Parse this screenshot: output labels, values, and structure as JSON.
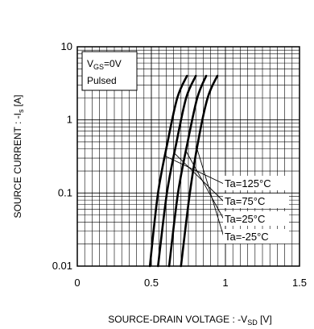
{
  "chart_data": {
    "type": "line",
    "title": "",
    "xlabel": {
      "prefix": "SOURCE-DRAIN VOLTAGE : -V",
      "sub": "SD",
      "suffix": " [V]"
    },
    "ylabel": {
      "prefix": "SOURCE CURRENT : -I",
      "sub": "s",
      "suffix": " [A]"
    },
    "xlim": [
      0,
      1.5
    ],
    "ylim": [
      0.01,
      10
    ],
    "yscale": "log",
    "grid": true,
    "x_ticks": [
      0,
      0.5,
      1,
      1.5
    ],
    "x_tick_labels": [
      "0",
      "0.5",
      "1",
      "1.5"
    ],
    "y_ticks": [
      0.01,
      0.1,
      1,
      10
    ],
    "y_tick_labels": [
      "0.01",
      "0.1",
      "1",
      "10"
    ],
    "condition_box": {
      "line1": {
        "prefix": "V",
        "sub": "GS",
        "suffix": "=0V"
      },
      "line2": "Pulsed"
    },
    "series": [
      {
        "name": "Ta=125°C",
        "x": [
          0.49,
          0.545,
          0.61,
          0.675,
          0.74
        ],
        "y": [
          0.01,
          0.1,
          0.5,
          2,
          4
        ]
      },
      {
        "name": "Ta=75°C",
        "x": [
          0.545,
          0.605,
          0.67,
          0.735,
          0.8
        ],
        "y": [
          0.01,
          0.1,
          0.5,
          2,
          4
        ]
      },
      {
        "name": "Ta=25°C",
        "x": [
          0.62,
          0.68,
          0.745,
          0.81,
          0.87
        ],
        "y": [
          0.01,
          0.1,
          0.5,
          2,
          4
        ]
      },
      {
        "name": "Ta=-25°C",
        "x": [
          0.7,
          0.76,
          0.815,
          0.88,
          0.945
        ],
        "y": [
          0.01,
          0.1,
          0.5,
          2,
          4
        ]
      }
    ],
    "legend_placement": "bottom-right"
  }
}
